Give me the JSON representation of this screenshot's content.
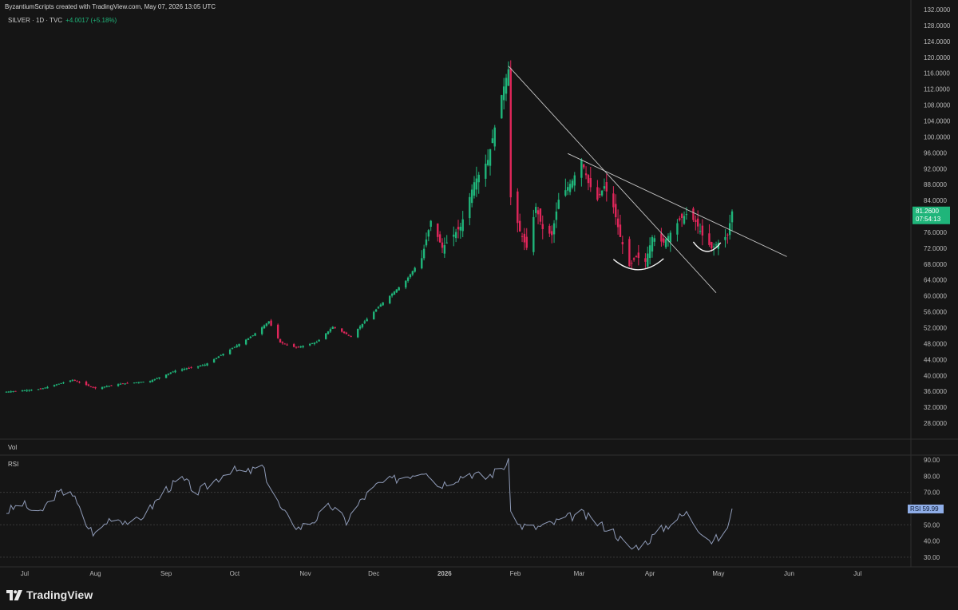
{
  "header": {
    "credit": "ByzantiumScripts created with TradingView.com, May 07, 2026 13:05 UTC",
    "symbol": "SILVER · 1D · TVC",
    "change": "+4.0017 (+5.18%)"
  },
  "panes": {
    "volume_label": "Vol",
    "rsi_label": "RSI"
  },
  "brand": {
    "text": "TradingView",
    "icon": "tradingview-logo-icon"
  },
  "colors": {
    "up": "#1fb57a",
    "down": "#e0265a",
    "background": "#151515",
    "line": "#8f9bb8",
    "price_tag": "#1fb57a",
    "rsi_tag": "#8faee8"
  },
  "chart_data": [
    {
      "type": "candlestick",
      "series_name": "SILVER",
      "ylim": [
        24,
        132
      ],
      "y_ticks": [
        "132.0000",
        "128.0000",
        "124.0000",
        "120.0000",
        "116.0000",
        "112.0000",
        "108.0000",
        "104.0000",
        "100.0000",
        "96.0000",
        "92.0000",
        "88.0000",
        "84.0000",
        "80.0000",
        "76.0000",
        "72.0000",
        "68.0000",
        "64.0000",
        "60.0000",
        "56.0000",
        "52.0000",
        "48.0000",
        "44.0000",
        "40.0000",
        "36.0000",
        "32.0000",
        "28.0000"
      ],
      "x_ticks": [
        "Jul",
        "Aug",
        "Sep",
        "Oct",
        "Nov",
        "Dec",
        "2026",
        "Feb",
        "Mar",
        "Apr",
        "May",
        "Jun",
        "Jul"
      ],
      "start_date": "2025-06-23",
      "end_date": "2026-05-07",
      "last_price": "81.2600",
      "countdown": "07:54:13",
      "close_points": [
        [
          "2025-06-23",
          35.9
        ],
        [
          "2025-07-08",
          36.6
        ],
        [
          "2025-07-22",
          38.9
        ],
        [
          "2025-08-01",
          36.8
        ],
        [
          "2025-08-12",
          37.9
        ],
        [
          "2025-08-25",
          38.6
        ],
        [
          "2025-09-05",
          41.2
        ],
        [
          "2025-09-18",
          42.7
        ],
        [
          "2025-10-01",
          47.2
        ],
        [
          "2025-10-09",
          50.1
        ],
        [
          "2025-10-16",
          53.6
        ],
        [
          "2025-10-21",
          48.3
        ],
        [
          "2025-10-28",
          47.0
        ],
        [
          "2025-11-06",
          48.4
        ],
        [
          "2025-11-13",
          52.2
        ],
        [
          "2025-11-21",
          49.8
        ],
        [
          "2025-11-27",
          53.6
        ],
        [
          "2025-12-05",
          58.4
        ],
        [
          "2025-12-15",
          63.8
        ],
        [
          "2025-12-22",
          69.5
        ],
        [
          "2025-12-26",
          78.9
        ],
        [
          "2025-12-31",
          72.1
        ],
        [
          "2026-01-08",
          77.4
        ],
        [
          "2026-01-14",
          88.6
        ],
        [
          "2026-01-20",
          94.2
        ],
        [
          "2026-01-26",
          110.5
        ],
        [
          "2026-01-29",
          117.0
        ],
        [
          "2026-01-30",
          84.8
        ],
        [
          "2026-02-03",
          76.2
        ],
        [
          "2026-02-06",
          72.1
        ],
        [
          "2026-02-10",
          82.4
        ],
        [
          "2026-02-13",
          76.8
        ],
        [
          "2026-02-17",
          75.3
        ],
        [
          "2026-02-20",
          84.2
        ],
        [
          "2026-02-26",
          89.0
        ],
        [
          "2026-03-02",
          94.3
        ],
        [
          "2026-03-05",
          88.4
        ],
        [
          "2026-03-09",
          84.2
        ],
        [
          "2026-03-12",
          87.6
        ],
        [
          "2026-03-16",
          82.3
        ],
        [
          "2026-03-19",
          74.8
        ],
        [
          "2026-03-23",
          67.5
        ],
        [
          "2026-03-26",
          69.9
        ],
        [
          "2026-03-30",
          68.6
        ],
        [
          "2026-04-02",
          74.8
        ],
        [
          "2026-04-07",
          73.4
        ],
        [
          "2026-04-10",
          75.9
        ],
        [
          "2026-04-14",
          79.1
        ],
        [
          "2026-04-17",
          80.6
        ],
        [
          "2026-04-21",
          78.6
        ],
        [
          "2026-04-24",
          75.2
        ],
        [
          "2026-04-28",
          72.0
        ],
        [
          "2026-05-01",
          73.4
        ],
        [
          "2026-05-05",
          75.3
        ],
        [
          "2026-05-06",
          78.3
        ],
        [
          "2026-05-07",
          81.26
        ]
      ],
      "trendlines": [
        {
          "from": [
            "2026-01-29",
            117.8
          ],
          "to": [
            "2026-04-30",
            60.8
          ]
        },
        {
          "from": [
            "2026-02-24",
            95.8
          ],
          "to": [
            "2026-05-31",
            69.9
          ]
        }
      ],
      "arcs": [
        {
          "from": [
            "2026-03-16",
            69.2
          ],
          "to": [
            "2026-04-07",
            69.4
          ],
          "bottom": 66.6
        },
        {
          "from": [
            "2026-04-20",
            73.6
          ],
          "to": [
            "2026-05-02",
            73.4
          ],
          "bottom": 71.2
        }
      ]
    },
    {
      "type": "line",
      "series_name": "RSI",
      "ylim": [
        25,
        92
      ],
      "y_ticks": [
        "90.00",
        "80.00",
        "70.00",
        "50.00",
        "40.00",
        "30.00"
      ],
      "bands": [
        70,
        50,
        30
      ],
      "last_value": "59.99",
      "points": [
        [
          "2025-06-23",
          58
        ],
        [
          "2025-06-30",
          63
        ],
        [
          "2025-07-07",
          56
        ],
        [
          "2025-07-14",
          68
        ],
        [
          "2025-07-21",
          72
        ],
        [
          "2025-07-28",
          50
        ],
        [
          "2025-08-01",
          44
        ],
        [
          "2025-08-08",
          55
        ],
        [
          "2025-08-18",
          51
        ],
        [
          "2025-08-25",
          60
        ],
        [
          "2025-09-01",
          72
        ],
        [
          "2025-09-08",
          78
        ],
        [
          "2025-09-15",
          70
        ],
        [
          "2025-09-22",
          77
        ],
        [
          "2025-09-29",
          84
        ],
        [
          "2025-10-06",
          82
        ],
        [
          "2025-10-13",
          86
        ],
        [
          "2025-10-17",
          72
        ],
        [
          "2025-10-22",
          58
        ],
        [
          "2025-10-29",
          48
        ],
        [
          "2025-11-05",
          53
        ],
        [
          "2025-11-12",
          62
        ],
        [
          "2025-11-19",
          52
        ],
        [
          "2025-11-26",
          66
        ],
        [
          "2025-12-03",
          75
        ],
        [
          "2025-12-10",
          78
        ],
        [
          "2025-12-17",
          81
        ],
        [
          "2025-12-24",
          84
        ],
        [
          "2025-12-29",
          74
        ],
        [
          "2026-01-05",
          78
        ],
        [
          "2026-01-12",
          82
        ],
        [
          "2026-01-19",
          79
        ],
        [
          "2026-01-26",
          85
        ],
        [
          "2026-01-29",
          88
        ],
        [
          "2026-01-30",
          61
        ],
        [
          "2026-02-02",
          50
        ],
        [
          "2026-02-09",
          48
        ],
        [
          "2026-02-16",
          50
        ],
        [
          "2026-02-23",
          54
        ],
        [
          "2026-03-02",
          57
        ],
        [
          "2026-03-09",
          51
        ],
        [
          "2026-03-16",
          46
        ],
        [
          "2026-03-23",
          35
        ],
        [
          "2026-03-30",
          39
        ],
        [
          "2026-04-06",
          47
        ],
        [
          "2026-04-13",
          54
        ],
        [
          "2026-04-17",
          57
        ],
        [
          "2026-04-21",
          50
        ],
        [
          "2026-04-28",
          40
        ],
        [
          "2026-05-04",
          44
        ],
        [
          "2026-05-07",
          60
        ]
      ]
    }
  ]
}
